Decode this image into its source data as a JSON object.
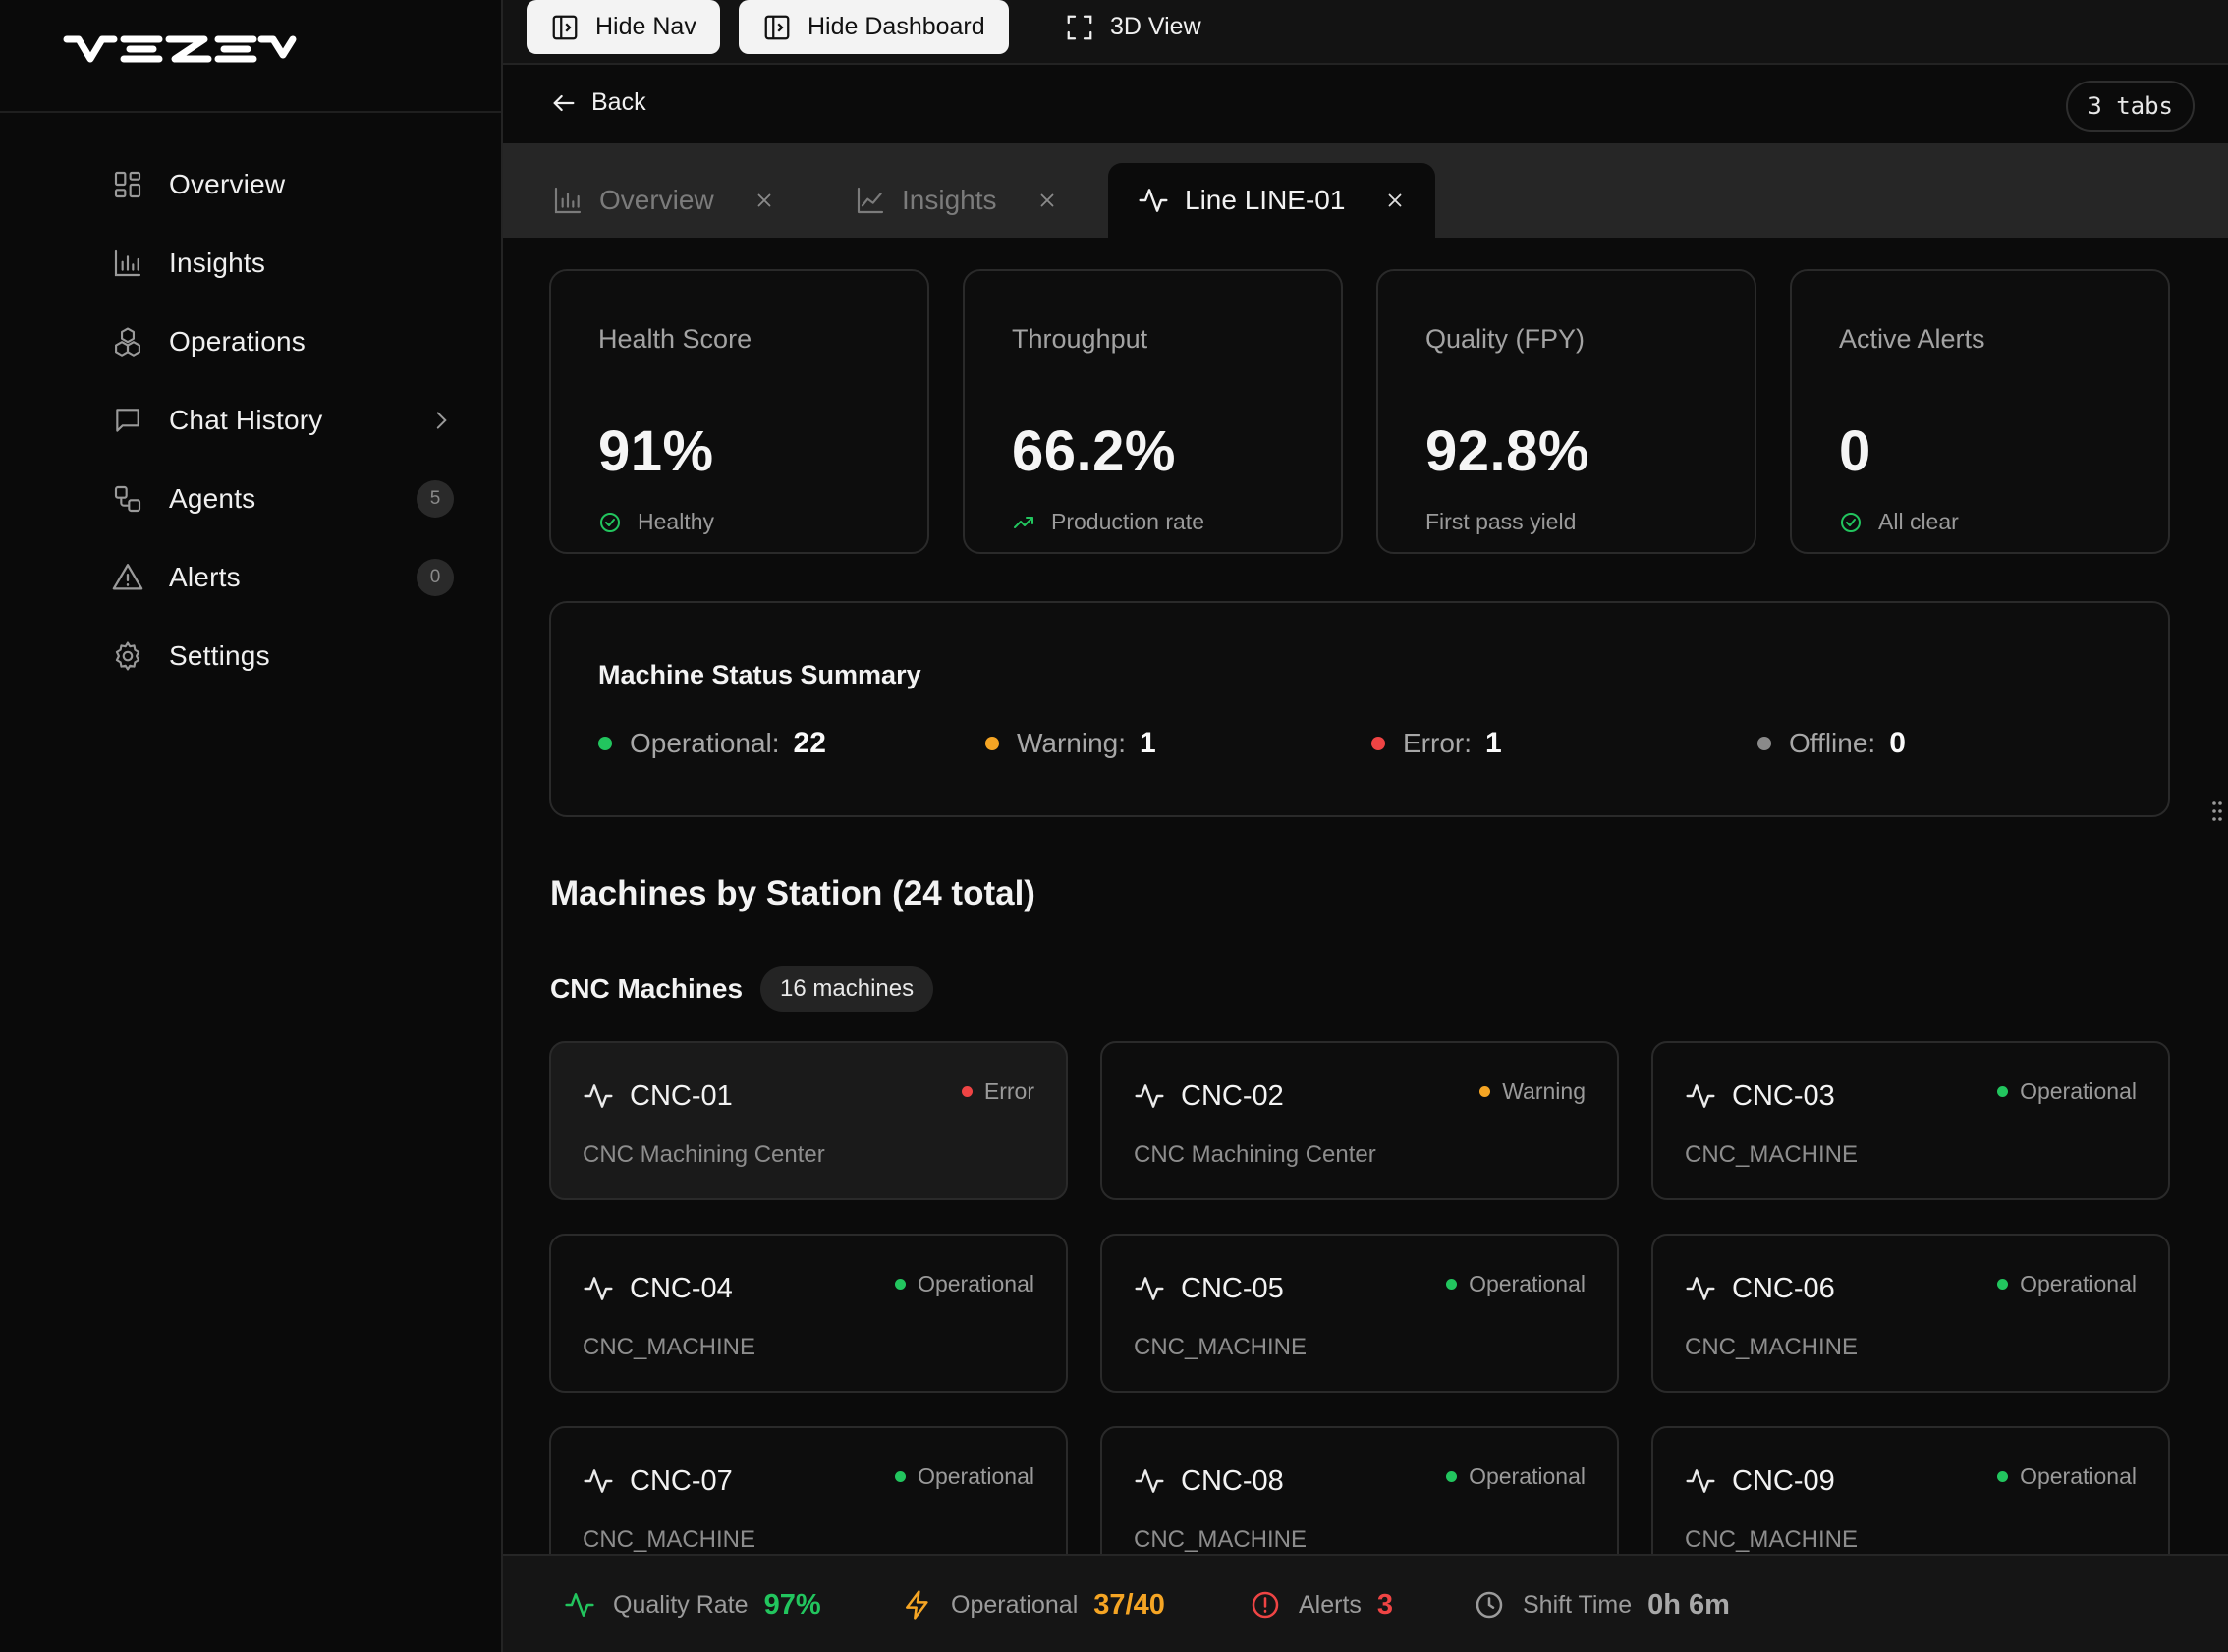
{
  "colors": {
    "green": "#22c55e",
    "amber": "#f5a524",
    "red": "#ef4444",
    "grey": "#8a8a8a"
  },
  "sidebar": {
    "items": [
      {
        "label": "Overview",
        "icon": "grid-icon"
      },
      {
        "label": "Insights",
        "icon": "bar-chart-icon"
      },
      {
        "label": "Operations",
        "icon": "boxes-icon"
      },
      {
        "label": "Chat History",
        "icon": "message-square-icon"
      },
      {
        "label": "Agents",
        "icon": "workflow-icon",
        "badge": "5"
      },
      {
        "label": "Alerts",
        "icon": "warning-triangle-icon",
        "badge": "0"
      },
      {
        "label": "Settings",
        "icon": "gear-icon"
      }
    ]
  },
  "toolbar": {
    "hide_nav": "Hide Nav",
    "hide_dashboard": "Hide Dashboard",
    "view_3d": "3D View"
  },
  "back": {
    "label": "Back",
    "tabs_count": "3 tabs"
  },
  "tabs": [
    {
      "label": "Overview",
      "icon": "bar-chart-icon",
      "active": false
    },
    {
      "label": "Insights",
      "icon": "line-chart-icon",
      "active": false
    },
    {
      "label": "Line LINE-01",
      "icon": "activity-icon",
      "active": true
    }
  ],
  "metrics": [
    {
      "title": "Health Score",
      "value": "91%",
      "sub": "Healthy",
      "icon": "check-circle-icon"
    },
    {
      "title": "Throughput",
      "value": "66.2%",
      "sub": "Production rate",
      "icon": "trending-up-icon"
    },
    {
      "title": "Quality (FPY)",
      "value": "92.8%",
      "sub": "First pass yield",
      "icon": ""
    },
    {
      "title": "Active Alerts",
      "value": "0",
      "sub": "All clear",
      "icon": "check-circle-icon"
    }
  ],
  "status_summary": {
    "title": "Machine Status Summary",
    "items": [
      {
        "label": "Operational:",
        "value": "22",
        "color": "#22c55e"
      },
      {
        "label": "Warning:",
        "value": "1",
        "color": "#f5a524"
      },
      {
        "label": "Error:",
        "value": "1",
        "color": "#ef4444"
      },
      {
        "label": "Offline:",
        "value": "0",
        "color": "#8a8a8a"
      }
    ]
  },
  "machines_section": {
    "title": "Machines by Station (24 total)",
    "group_title": "CNC Machines",
    "group_badge": "16 machines",
    "machines": [
      {
        "name": "CNC-01",
        "status": "Error",
        "status_color": "#ef4444",
        "type": "CNC Machining Center"
      },
      {
        "name": "CNC-02",
        "status": "Warning",
        "status_color": "#f5a524",
        "type": "CNC Machining Center"
      },
      {
        "name": "CNC-03",
        "status": "Operational",
        "status_color": "#22c55e",
        "type": "CNC_MACHINE"
      },
      {
        "name": "CNC-04",
        "status": "Operational",
        "status_color": "#22c55e",
        "type": "CNC_MACHINE"
      },
      {
        "name": "CNC-05",
        "status": "Operational",
        "status_color": "#22c55e",
        "type": "CNC_MACHINE"
      },
      {
        "name": "CNC-06",
        "status": "Operational",
        "status_color": "#22c55e",
        "type": "CNC_MACHINE"
      },
      {
        "name": "CNC-07",
        "status": "Operational",
        "status_color": "#22c55e",
        "type": "CNC_MACHINE"
      },
      {
        "name": "CNC-08",
        "status": "Operational",
        "status_color": "#22c55e",
        "type": "CNC_MACHINE"
      },
      {
        "name": "CNC-09",
        "status": "Operational",
        "status_color": "#22c55e",
        "type": "CNC_MACHINE"
      }
    ]
  },
  "footer": {
    "quality": {
      "label": "Quality Rate",
      "value": "97%",
      "color": "#22c55e"
    },
    "operational": {
      "label": "Operational",
      "value": "37/40",
      "color": "#f5a524"
    },
    "alerts": {
      "label": "Alerts",
      "value": "3",
      "color": "#ef4444"
    },
    "shift": {
      "label": "Shift Time",
      "value": "0h 6m",
      "color": "#a8a8a8"
    }
  }
}
